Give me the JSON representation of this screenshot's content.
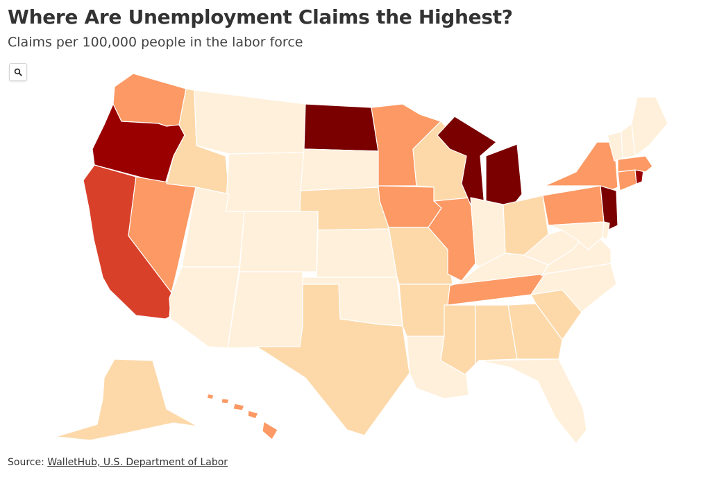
{
  "title": "Where Are Unemployment Claims the Highest?",
  "subtitle": "Claims per 100,000 people in the labor force",
  "zoom_button": {
    "icon": "magnifier-icon"
  },
  "source": {
    "prefix": "Source: ",
    "link_text": "WalletHub, U.S. Department of Labor"
  },
  "legend": {
    "shown": false
  },
  "colors": {
    "lowest": "#fff0db",
    "low": "#fdd9aa",
    "medium": "#fc9964",
    "high": "#d9402a",
    "highest": "#9b0000",
    "extreme": "#7a0000"
  },
  "chart_data": {
    "type": "choropleth",
    "metric": "Claims per 100,000 people in the labor force",
    "states": [
      {
        "id": "WA",
        "level": "medium"
      },
      {
        "id": "OR",
        "level": "highest"
      },
      {
        "id": "CA",
        "level": "high"
      },
      {
        "id": "NV",
        "level": "medium"
      },
      {
        "id": "ID",
        "level": "low"
      },
      {
        "id": "MT",
        "level": "lowest"
      },
      {
        "id": "WY",
        "level": "lowest"
      },
      {
        "id": "UT",
        "level": "lowest"
      },
      {
        "id": "AZ",
        "level": "lowest"
      },
      {
        "id": "CO",
        "level": "lowest"
      },
      {
        "id": "NM",
        "level": "lowest"
      },
      {
        "id": "ND",
        "level": "extreme"
      },
      {
        "id": "SD",
        "level": "lowest"
      },
      {
        "id": "NE",
        "level": "low"
      },
      {
        "id": "KS",
        "level": "lowest"
      },
      {
        "id": "OK",
        "level": "lowest"
      },
      {
        "id": "TX",
        "level": "low"
      },
      {
        "id": "MN",
        "level": "medium"
      },
      {
        "id": "IA",
        "level": "medium"
      },
      {
        "id": "MO",
        "level": "low"
      },
      {
        "id": "AR",
        "level": "low"
      },
      {
        "id": "LA",
        "level": "lowest"
      },
      {
        "id": "WI",
        "level": "low"
      },
      {
        "id": "IL",
        "level": "medium"
      },
      {
        "id": "MI",
        "level": "extreme"
      },
      {
        "id": "IN",
        "level": "lowest"
      },
      {
        "id": "OH",
        "level": "low"
      },
      {
        "id": "KY",
        "level": "lowest"
      },
      {
        "id": "TN",
        "level": "medium"
      },
      {
        "id": "MS",
        "level": "low"
      },
      {
        "id": "AL",
        "level": "low"
      },
      {
        "id": "GA",
        "level": "low"
      },
      {
        "id": "FL",
        "level": "lowest"
      },
      {
        "id": "SC",
        "level": "low"
      },
      {
        "id": "NC",
        "level": "lowest"
      },
      {
        "id": "VA",
        "level": "lowest"
      },
      {
        "id": "WV",
        "level": "lowest"
      },
      {
        "id": "PA",
        "level": "medium"
      },
      {
        "id": "NY",
        "level": "medium"
      },
      {
        "id": "NJ",
        "level": "extreme"
      },
      {
        "id": "DE",
        "level": "lowest"
      },
      {
        "id": "MD",
        "level": "lowest"
      },
      {
        "id": "CT",
        "level": "medium"
      },
      {
        "id": "RI",
        "level": "highest"
      },
      {
        "id": "MA",
        "level": "medium"
      },
      {
        "id": "VT",
        "level": "lowest"
      },
      {
        "id": "NH",
        "level": "lowest"
      },
      {
        "id": "ME",
        "level": "lowest"
      },
      {
        "id": "AK",
        "level": "low"
      },
      {
        "id": "HI",
        "level": "medium"
      }
    ]
  }
}
